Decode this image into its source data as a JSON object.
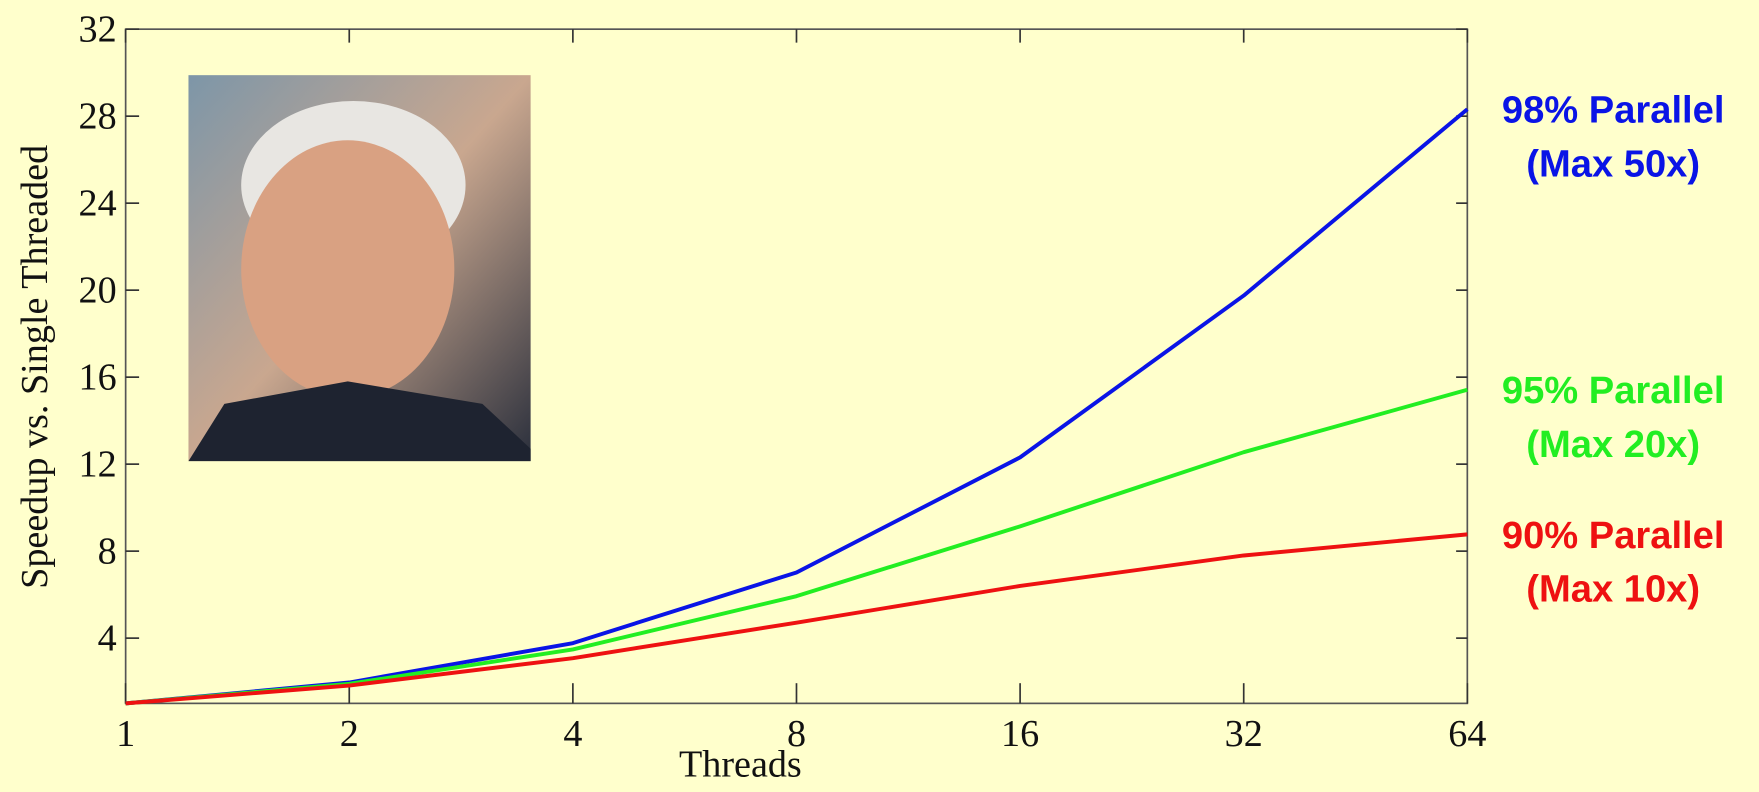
{
  "chart_data": {
    "type": "line",
    "x_label": "Threads",
    "y_label": "Speedup vs. Single Threaded",
    "x": [
      1,
      2,
      4,
      8,
      16,
      32,
      64
    ],
    "xlim": [
      1,
      64
    ],
    "xticks": [
      1,
      2,
      4,
      8,
      16,
      32,
      64
    ],
    "xscale": "log2",
    "ylim": [
      1,
      32
    ],
    "yticks": [
      4,
      8,
      12,
      16,
      20,
      24,
      28,
      32
    ],
    "series": [
      {
        "name": "98% Parallel",
        "note": "(Max 50x)",
        "color": "#0a14e6",
        "values": [
          1,
          1.96,
          3.77,
          7.02,
          12.31,
          19.75,
          28.32
        ]
      },
      {
        "name": "95% Parallel",
        "note": "(Max 20x)",
        "color": "#22ee22",
        "values": [
          1,
          1.9,
          3.48,
          5.93,
          9.14,
          12.55,
          15.42
        ]
      },
      {
        "name": "90% Parallel",
        "note": "(Max 10x)",
        "color": "#ee1111",
        "values": [
          1,
          1.82,
          3.08,
          4.71,
          6.4,
          7.8,
          8.77
        ]
      }
    ]
  }
}
